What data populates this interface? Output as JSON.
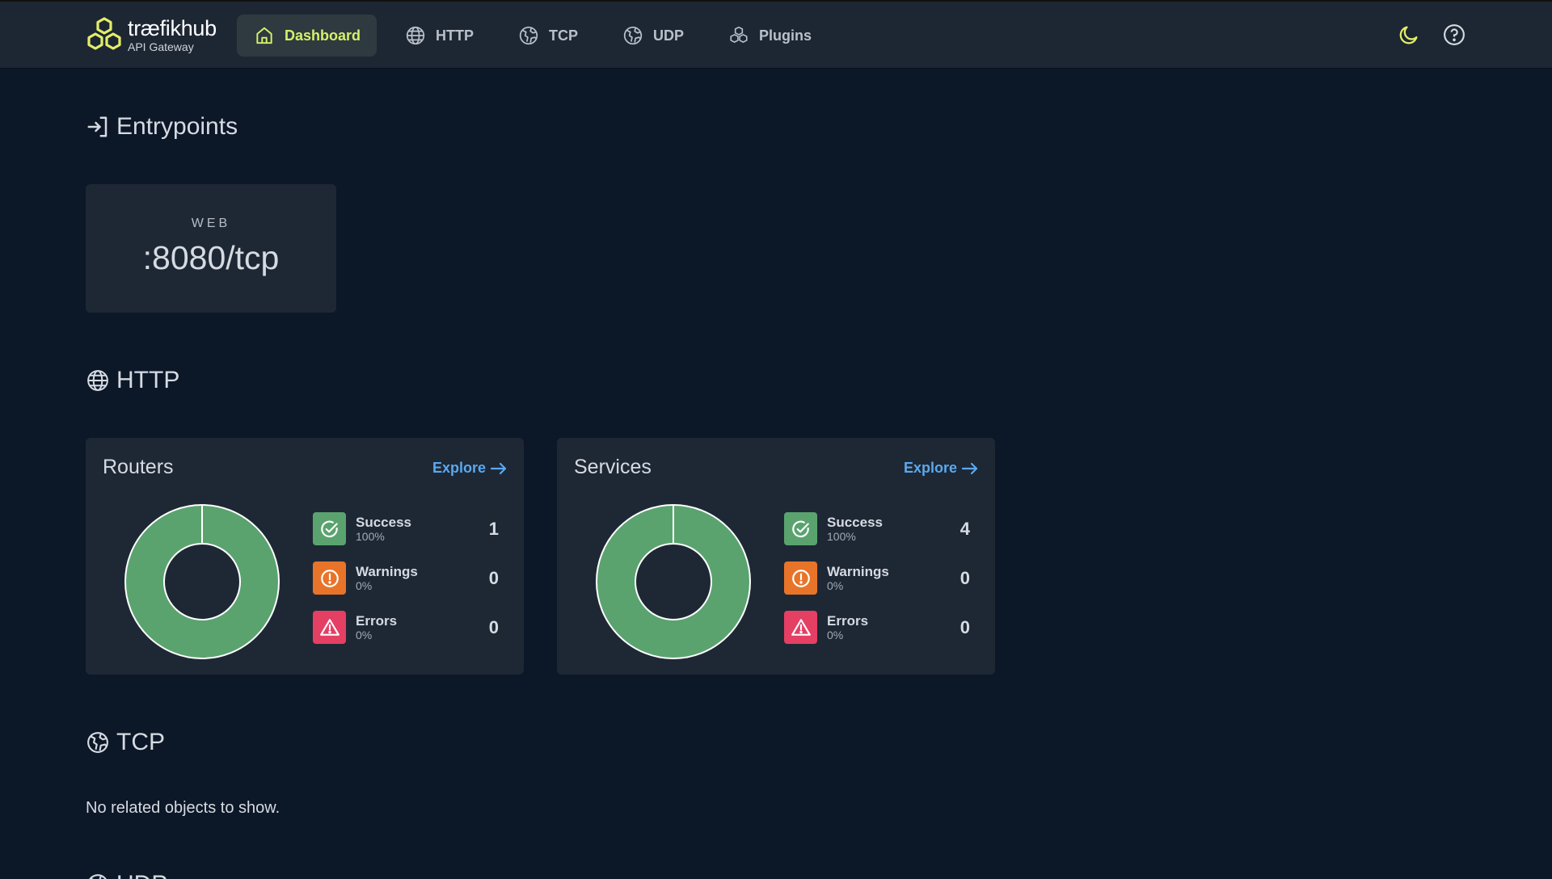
{
  "brand": {
    "name_bold": "træfik",
    "name_light": "hub",
    "subtitle": "API Gateway",
    "accent": "#d6f06b"
  },
  "nav": [
    {
      "label": "Dashboard",
      "icon": "home-icon",
      "active": true
    },
    {
      "label": "HTTP",
      "icon": "globe-icon"
    },
    {
      "label": "TCP",
      "icon": "tcp-globe-icon"
    },
    {
      "label": "UDP",
      "icon": "udp-globe-icon"
    },
    {
      "label": "Plugins",
      "icon": "cubes-icon"
    }
  ],
  "top_icons": [
    "moon-icon",
    "help-icon"
  ],
  "entrypoints": {
    "title": "Entrypoints",
    "items": [
      {
        "name": "WEB",
        "address": ":8080/tcp"
      }
    ]
  },
  "http": {
    "title": "HTTP",
    "routers": {
      "title": "Routers",
      "explore": "Explore",
      "success": {
        "label": "Success",
        "pct": "100%",
        "count": "1"
      },
      "warnings": {
        "label": "Warnings",
        "pct": "0%",
        "count": "0"
      },
      "errors": {
        "label": "Errors",
        "pct": "0%",
        "count": "0"
      }
    },
    "services": {
      "title": "Services",
      "explore": "Explore",
      "success": {
        "label": "Success",
        "pct": "100%",
        "count": "4"
      },
      "warnings": {
        "label": "Warnings",
        "pct": "0%",
        "count": "0"
      },
      "errors": {
        "label": "Errors",
        "pct": "0%",
        "count": "0"
      }
    }
  },
  "tcp": {
    "title": "TCP",
    "empty": "No related objects to show."
  },
  "udp": {
    "title": "UDP"
  },
  "colors": {
    "success": "#5aa36f",
    "warning": "#e8742a",
    "error": "#e53f64",
    "link": "#5ba8ee"
  }
}
